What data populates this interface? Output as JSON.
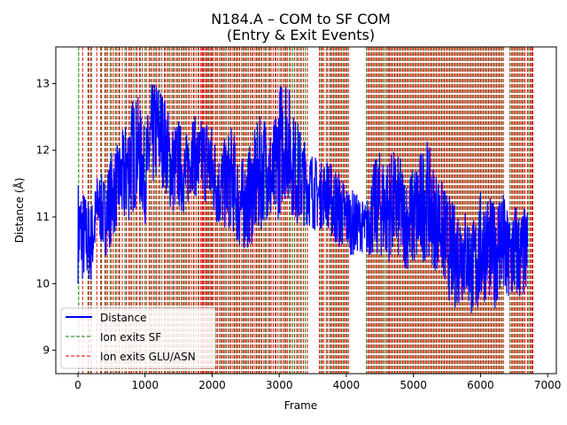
{
  "chart_data": {
    "type": "line",
    "title_line1": "N184.A – COM to SF COM",
    "title_line2": "(Entry & Exit Events)",
    "xlabel": "Frame",
    "ylabel": "Distance (Å)",
    "xlim": [
      -330,
      7130
    ],
    "ylim": [
      8.65,
      13.55
    ],
    "xticks": [
      0,
      1000,
      2000,
      3000,
      4000,
      5000,
      6000,
      7000
    ],
    "yticks": [
      9,
      10,
      11,
      12,
      13
    ],
    "grid": false,
    "legend_position": "lower-left",
    "legend": [
      {
        "label": "Distance",
        "style": "solid",
        "color": "#0000ff"
      },
      {
        "label": "Ion exits SF",
        "style": "dashed",
        "color": "#008000"
      },
      {
        "label": "Ion exits GLU/ASN",
        "style": "dashed",
        "color": "#ff0000"
      }
    ],
    "series": [
      {
        "name": "Distance",
        "color": "#0000ff",
        "x_start": 0,
        "x_step": 100,
        "amplitude": [
          0.8,
          0.7,
          0.6,
          0.5,
          0.6,
          0.7,
          0.6,
          0.8,
          0.9,
          0.8,
          0.7,
          0.8,
          0.8,
          0.7,
          0.7,
          0.7,
          0.6,
          0.6,
          0.6,
          0.7,
          0.7,
          0.6,
          0.7,
          0.8,
          0.7,
          0.7,
          0.8,
          0.9,
          0.8,
          0.8,
          1.0,
          1.0,
          0.8,
          0.8,
          0.6,
          0.6,
          0.5,
          0.5,
          0.6,
          0.6,
          0.5,
          0.5,
          0.4,
          0.4,
          0.7,
          0.8,
          0.8,
          0.8,
          0.8,
          0.7,
          0.8,
          0.9,
          0.9,
          0.8,
          0.7,
          0.8,
          0.8,
          0.8,
          0.7,
          0.8,
          0.9,
          0.8,
          0.8,
          0.9,
          0.8,
          0.8,
          0.7,
          0.7
        ],
        "values": [
          10.8,
          10.7,
          10.6,
          11.2,
          11.0,
          11.3,
          11.5,
          11.6,
          11.9,
          12.0,
          11.6,
          12.2,
          12.3,
          12.1,
          11.7,
          11.8,
          11.6,
          12.0,
          11.8,
          11.9,
          11.7,
          11.4,
          11.5,
          11.6,
          11.2,
          11.2,
          11.4,
          11.6,
          11.8,
          11.5,
          12.0,
          12.3,
          11.8,
          11.6,
          11.5,
          11.4,
          11.3,
          11.4,
          11.2,
          11.1,
          11.0,
          10.9,
          10.9,
          10.8,
          11.1,
          11.2,
          11.1,
          11.2,
          11.1,
          10.9,
          11.0,
          11.1,
          11.3,
          11.0,
          10.9,
          10.6,
          10.4,
          10.5,
          10.4,
          10.2,
          10.5,
          10.6,
          10.4,
          10.7,
          10.3,
          10.5,
          10.4,
          10.5
        ]
      }
    ],
    "exit_events_sf": [
      10,
      150,
      190,
      340,
      420,
      480,
      560,
      610,
      700,
      780,
      860,
      930,
      1000,
      1080,
      1150,
      1220,
      1290,
      1350,
      1420,
      1490,
      1540,
      1600,
      1660,
      1720,
      1790,
      1860,
      1910,
      1950,
      2000,
      2060,
      2130,
      2190,
      2260,
      2330,
      2390,
      2460,
      2520,
      2590,
      2660,
      2720,
      2790,
      2860,
      2940,
      3010,
      3080,
      3150,
      3200,
      3260,
      3330,
      3390,
      3620,
      3700,
      3770,
      3830,
      3890,
      3950,
      4010,
      4300,
      4360,
      4420,
      4480,
      4540,
      4590,
      4640,
      4700,
      4760,
      4820,
      4880,
      4940,
      5000,
      5060,
      5120,
      5180,
      5240,
      5300,
      5360,
      5420,
      5480,
      5540,
      5600,
      5660,
      5720,
      5780,
      5840,
      5900,
      5960,
      6020,
      6080,
      6140,
      6200,
      6260,
      6320,
      6460,
      6520,
      6580,
      6640,
      6720,
      6770
    ],
    "exit_events_glu_asn": [
      70,
      160,
      200,
      280,
      350,
      400,
      440,
      500,
      530,
      580,
      620,
      660,
      720,
      760,
      800,
      830,
      880,
      920,
      960,
      1020,
      1060,
      1100,
      1130,
      1170,
      1200,
      1250,
      1300,
      1330,
      1370,
      1400,
      1440,
      1470,
      1510,
      1560,
      1580,
      1620,
      1650,
      1690,
      1730,
      1760,
      1800,
      1830,
      1850,
      1870,
      1890,
      1920,
      1940,
      1970,
      1990,
      2020,
      2050,
      2080,
      2110,
      2150,
      2170,
      2210,
      2240,
      2280,
      2310,
      2350,
      2370,
      2410,
      2440,
      2480,
      2500,
      2540,
      2570,
      2610,
      2640,
      2680,
      2700,
      2740,
      2770,
      2810,
      2840,
      2880,
      2910,
      2950,
      2980,
      3030,
      3060,
      3100,
      3120,
      3170,
      3230,
      3280,
      3310,
      3360,
      3420,
      3600,
      3640,
      3660,
      3720,
      3750,
      3790,
      3810,
      3850,
      3870,
      3910,
      3930,
      3970,
      3990,
      4030,
      4320,
      4340,
      4380,
      4400,
      4440,
      4460,
      4500,
      4520,
      4560,
      4610,
      4630,
      4660,
      4680,
      4720,
      4740,
      4780,
      4800,
      4840,
      4860,
      4900,
      4920,
      4960,
      4980,
      5020,
      5040,
      5080,
      5100,
      5140,
      5160,
      5200,
      5220,
      5260,
      5280,
      5320,
      5340,
      5380,
      5400,
      5440,
      5460,
      5500,
      5520,
      5560,
      5580,
      5620,
      5640,
      5680,
      5700,
      5740,
      5760,
      5800,
      5820,
      5860,
      5880,
      5920,
      5940,
      5980,
      6000,
      6040,
      6060,
      6100,
      6120,
      6160,
      6180,
      6220,
      6240,
      6280,
      6300,
      6340,
      6440,
      6480,
      6500,
      6540,
      6560,
      6600,
      6620,
      6660,
      6700,
      6740,
      6760,
      6780
    ]
  }
}
